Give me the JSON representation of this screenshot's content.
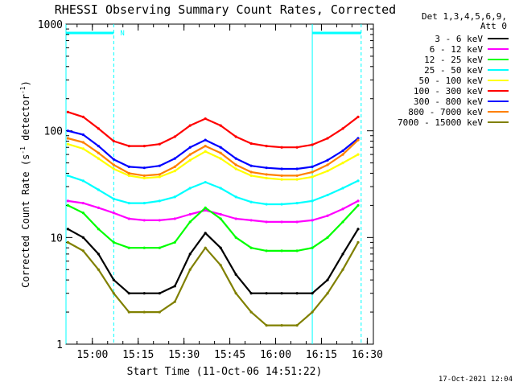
{
  "chart_data": {
    "type": "line",
    "title": "RHESSI Observing Summary Count Rates, Corrected",
    "xlabel": "Start Time (11-Oct-06 14:51:22)",
    "ylabel_main": "Corrected Count Rate (s",
    "ylabel_sup1": "-1",
    "ylabel_mid": " detector",
    "ylabel_sup2": "-1",
    "ylabel_end": ")",
    "yscale": "log",
    "ylim": [
      1,
      1000
    ],
    "xlim": [
      "14:51:22",
      "16:32:00"
    ],
    "x_ticks": [
      "15:00",
      "15:15",
      "15:30",
      "15:45",
      "16:00",
      "16:15",
      "16:30"
    ],
    "y_ticks": [
      "1",
      "10",
      "100",
      "1000"
    ],
    "header_lines": [
      "Det 1,3,4,5,6,9,",
      "Att 0"
    ],
    "footer": "17-Oct-2021 12:04",
    "flag_label": "N",
    "night_intervals": [
      [
        "14:51:22",
        "15:07:00"
      ],
      [
        "16:12:00",
        "16:28:00"
      ]
    ],
    "series": [
      {
        "name": "3 - 6 keV",
        "color": "#000000",
        "x": [
          "14:52",
          "14:57",
          "15:02",
          "15:07",
          "15:12",
          "15:17",
          "15:22",
          "15:27",
          "15:32",
          "15:37",
          "15:42",
          "15:47",
          "15:52",
          "15:57",
          "16:02",
          "16:07",
          "16:12",
          "16:17",
          "16:22",
          "16:27"
        ],
        "values": [
          12,
          10,
          7,
          4,
          3,
          3,
          3,
          3.5,
          7,
          11,
          8,
          4.5,
          3,
          3,
          3,
          3,
          3,
          4,
          7,
          12
        ]
      },
      {
        "name": "6 - 12 keV",
        "color": "#ff00ff",
        "x": [
          "14:52",
          "14:57",
          "15:02",
          "15:07",
          "15:12",
          "15:17",
          "15:22",
          "15:27",
          "15:32",
          "15:37",
          "15:42",
          "15:47",
          "15:52",
          "15:57",
          "16:02",
          "16:07",
          "16:12",
          "16:17",
          "16:22",
          "16:27"
        ],
        "values": [
          22,
          21,
          19,
          17,
          15,
          14.5,
          14.5,
          15,
          16.5,
          18,
          16.5,
          15,
          14.5,
          14,
          14,
          14,
          14.5,
          16,
          18.5,
          22
        ]
      },
      {
        "name": "12 - 25 keV",
        "color": "#00ff00",
        "x": [
          "14:52",
          "14:57",
          "15:02",
          "15:07",
          "15:12",
          "15:17",
          "15:22",
          "15:27",
          "15:32",
          "15:37",
          "15:42",
          "15:47",
          "15:52",
          "15:57",
          "16:02",
          "16:07",
          "16:12",
          "16:17",
          "16:22",
          "16:27"
        ],
        "values": [
          20,
          17,
          12,
          9,
          8,
          8,
          8,
          9,
          14,
          19,
          15,
          10,
          8,
          7.5,
          7.5,
          7.5,
          8,
          10,
          14,
          20
        ]
      },
      {
        "name": "25 - 50 keV",
        "color": "#00ffff",
        "x": [
          "14:52",
          "14:57",
          "15:02",
          "15:07",
          "15:12",
          "15:17",
          "15:22",
          "15:27",
          "15:32",
          "15:37",
          "15:42",
          "15:47",
          "15:52",
          "15:57",
          "16:02",
          "16:07",
          "16:12",
          "16:17",
          "16:22",
          "16:27"
        ],
        "values": [
          38,
          34,
          28,
          23,
          21,
          21,
          22,
          24,
          29,
          33,
          29,
          24,
          21.5,
          20.5,
          20.5,
          21,
          22,
          25,
          29,
          34
        ]
      },
      {
        "name": "50 - 100 keV",
        "color": "#ffff00",
        "x": [
          "14:52",
          "14:57",
          "15:02",
          "15:07",
          "15:12",
          "15:17",
          "15:22",
          "15:27",
          "15:32",
          "15:37",
          "15:42",
          "15:47",
          "15:52",
          "15:57",
          "16:02",
          "16:07",
          "16:12",
          "16:17",
          "16:22",
          "16:27"
        ],
        "values": [
          75,
          68,
          55,
          44,
          38,
          36,
          37,
          42,
          53,
          64,
          55,
          44,
          38,
          36,
          35,
          35,
          37,
          42,
          50,
          60
        ]
      },
      {
        "name": "100 - 300 keV",
        "color": "#ff0000",
        "x": [
          "14:52",
          "14:57",
          "15:02",
          "15:07",
          "15:12",
          "15:17",
          "15:22",
          "15:27",
          "15:32",
          "15:37",
          "15:42",
          "15:47",
          "15:52",
          "15:57",
          "16:02",
          "16:07",
          "16:12",
          "16:17",
          "16:22",
          "16:27"
        ],
        "values": [
          150,
          135,
          105,
          80,
          72,
          72,
          75,
          88,
          112,
          130,
          112,
          88,
          76,
          72,
          70,
          70,
          74,
          85,
          105,
          135
        ]
      },
      {
        "name": "300 - 800 keV",
        "color": "#0000ff",
        "x": [
          "14:52",
          "14:57",
          "15:02",
          "15:07",
          "15:12",
          "15:17",
          "15:22",
          "15:27",
          "15:32",
          "15:37",
          "15:42",
          "15:47",
          "15:52",
          "15:57",
          "16:02",
          "16:07",
          "16:12",
          "16:17",
          "16:22",
          "16:27"
        ],
        "values": [
          100,
          92,
          72,
          54,
          46,
          45,
          47,
          55,
          70,
          82,
          70,
          55,
          47,
          45,
          44,
          44,
          46,
          53,
          65,
          85
        ]
      },
      {
        "name": "800 - 7000 keV",
        "color": "#ff8000",
        "x": [
          "14:52",
          "14:57",
          "15:02",
          "15:07",
          "15:12",
          "15:17",
          "15:22",
          "15:27",
          "15:32",
          "15:37",
          "15:42",
          "15:47",
          "15:52",
          "15:57",
          "16:02",
          "16:07",
          "16:12",
          "16:17",
          "16:22",
          "16:27"
        ],
        "values": [
          85,
          78,
          62,
          48,
          40,
          38,
          39,
          46,
          60,
          72,
          62,
          48,
          41,
          39,
          38,
          38,
          41,
          48,
          60,
          82
        ]
      },
      {
        "name": "7000 - 15000 keV",
        "color": "#808000",
        "x": [
          "14:52",
          "14:57",
          "15:02",
          "15:07",
          "15:12",
          "15:17",
          "15:22",
          "15:27",
          "15:32",
          "15:37",
          "15:42",
          "15:47",
          "15:52",
          "15:57",
          "16:02",
          "16:07",
          "16:12",
          "16:17",
          "16:22",
          "16:27"
        ],
        "values": [
          9,
          7.5,
          5,
          3,
          2,
          2,
          2,
          2.5,
          5,
          8,
          5.5,
          3,
          2,
          1.5,
          1.5,
          1.5,
          2,
          3,
          5,
          9
        ]
      }
    ]
  }
}
